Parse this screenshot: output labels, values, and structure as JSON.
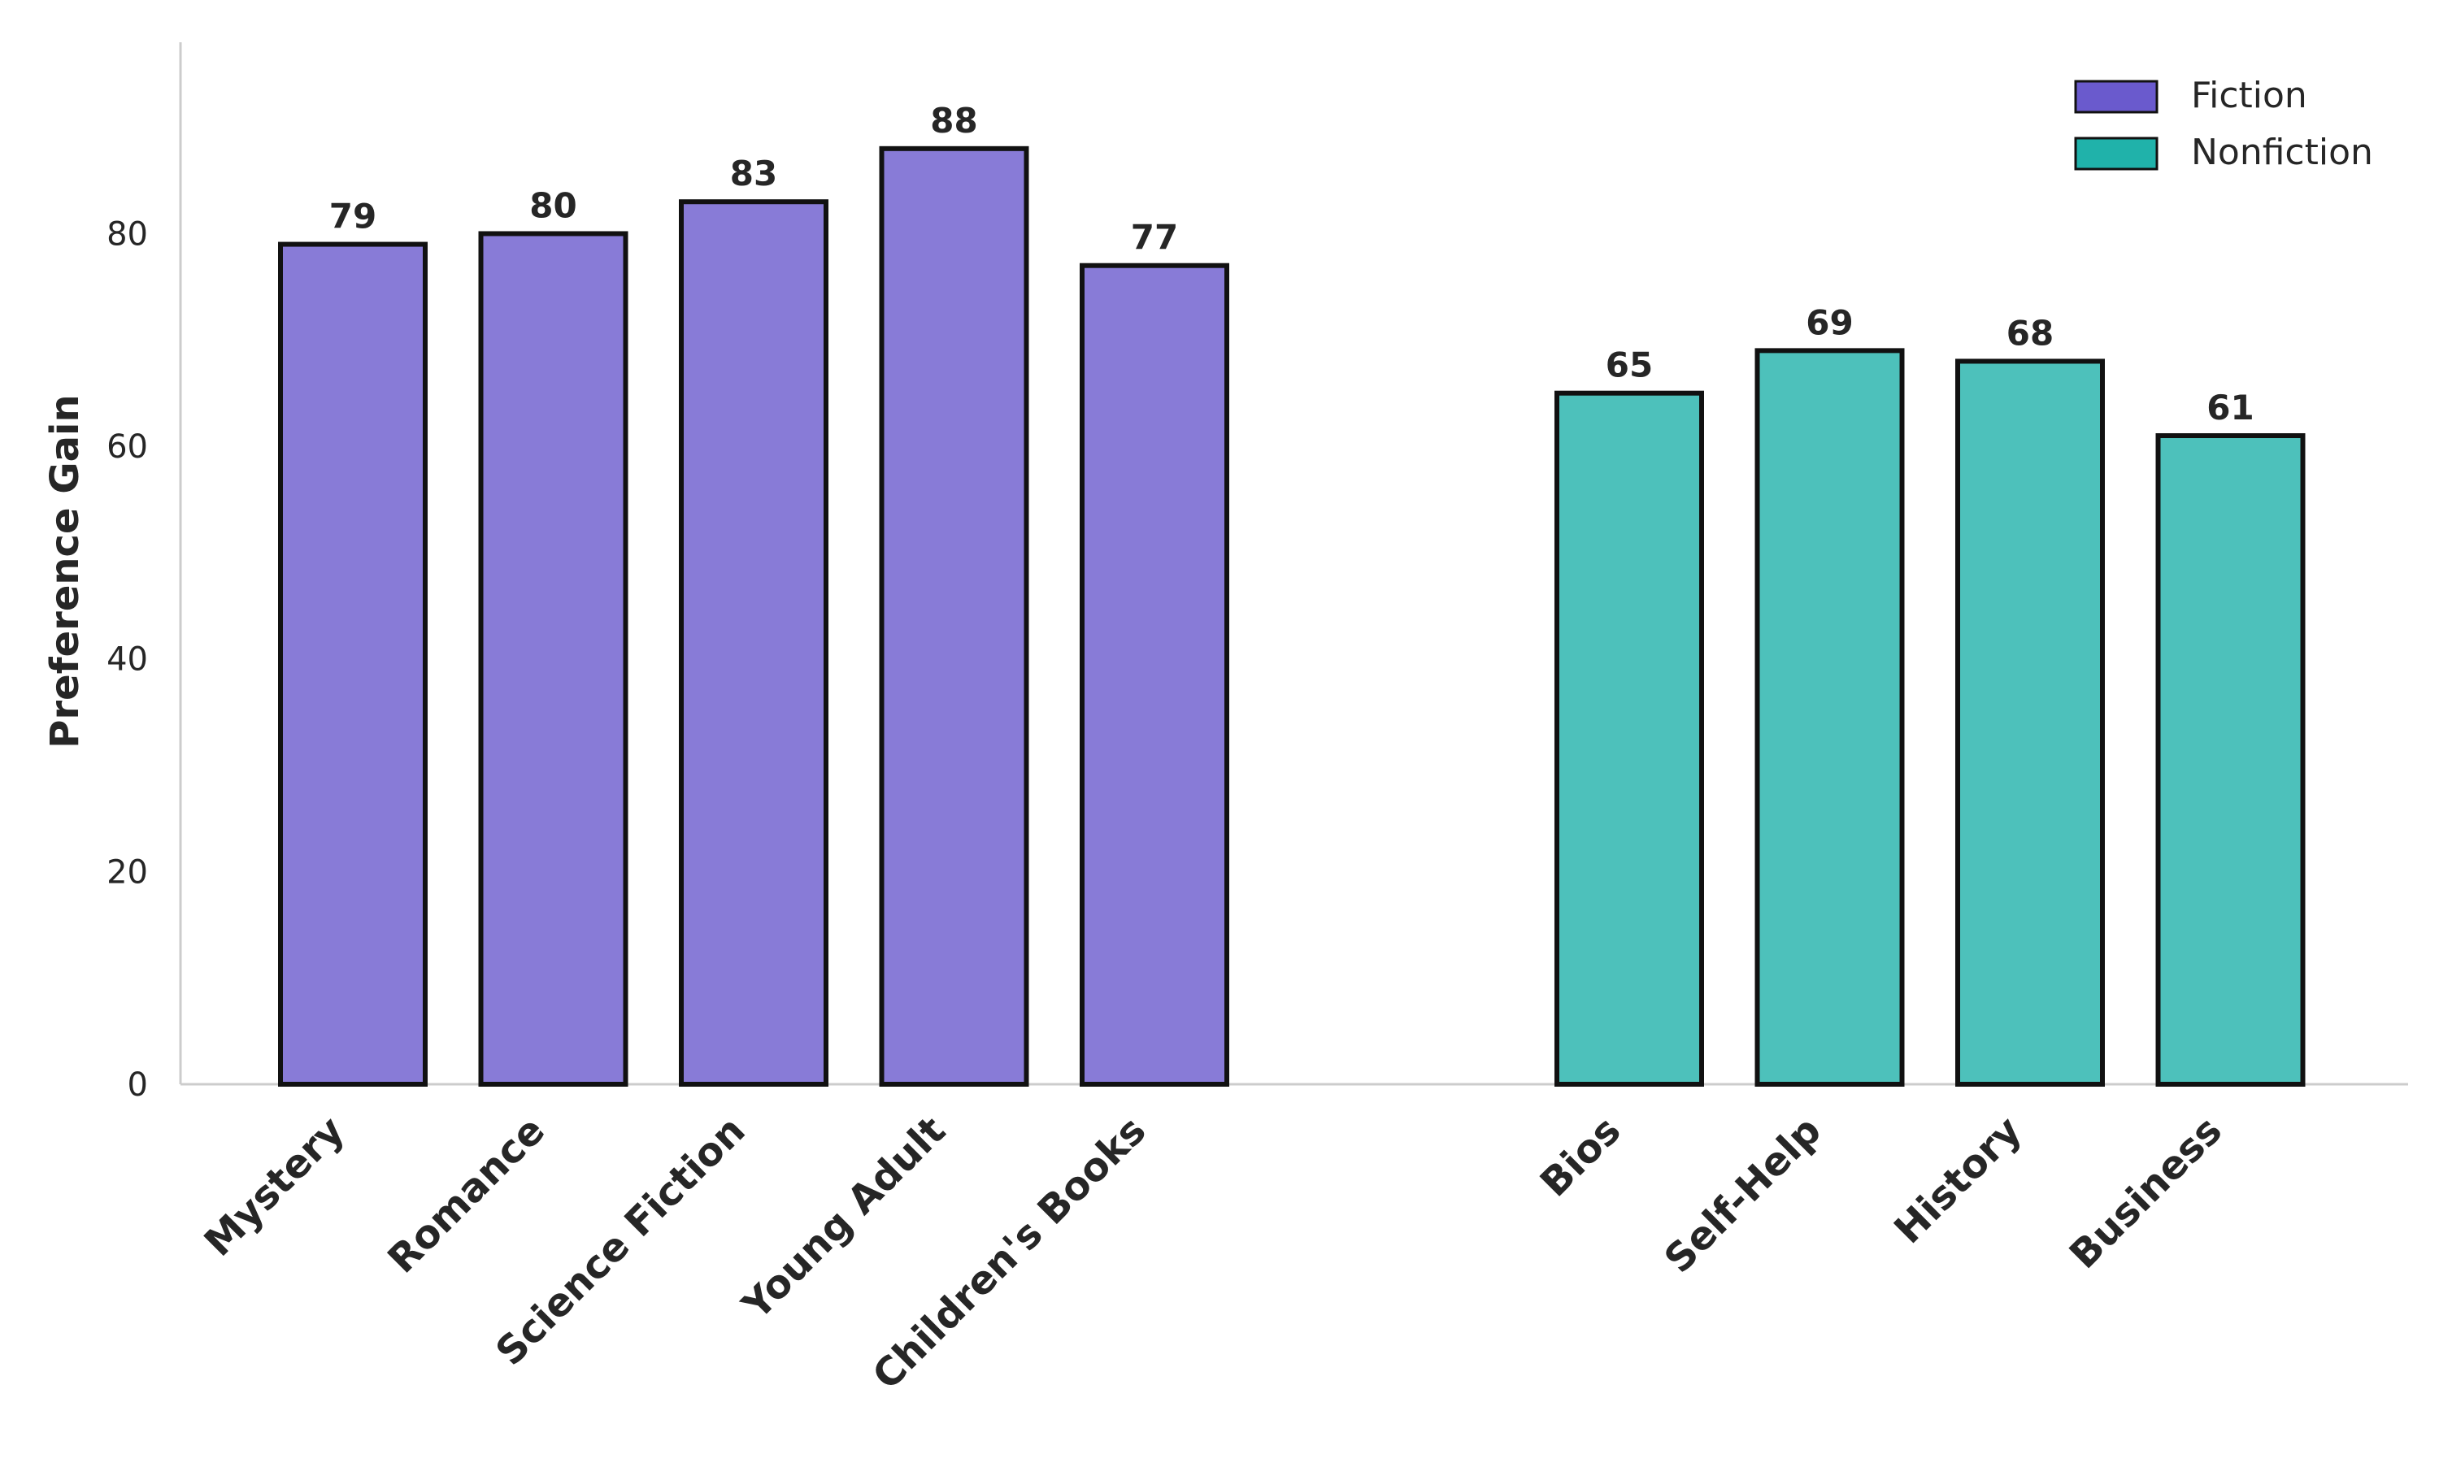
{
  "chart_data": {
    "type": "bar",
    "ylabel": "Preference Gain",
    "xlabel": "",
    "ylim": [
      0,
      98
    ],
    "yticks": [
      0,
      20,
      40,
      60,
      80
    ],
    "grid": false,
    "legend_position": "top-right",
    "groups": [
      {
        "name": "Fiction",
        "color": "#6a5acd",
        "categories": [
          "Mystery",
          "Romance",
          "Science Fiction",
          "Young Adult",
          "Children's Books"
        ],
        "values": [
          79,
          80,
          83,
          88,
          77
        ]
      },
      {
        "name": "Nonfiction",
        "color": "#20b2aa",
        "categories": [
          "Bios",
          "Self-Help",
          "History",
          "Business"
        ],
        "values": [
          65,
          69,
          68,
          61
        ]
      }
    ],
    "data_labels": true
  }
}
